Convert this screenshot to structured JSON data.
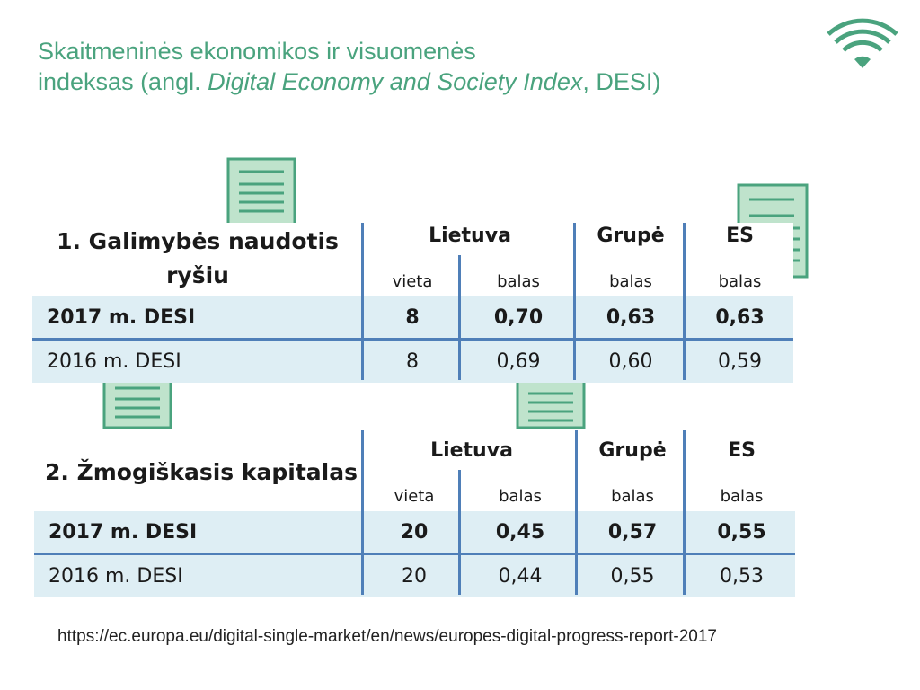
{
  "title": {
    "line1": "Skaitmeninės ekonomikos ir visuomenės",
    "line2_prefix": "indeksas (angl. ",
    "line2_italic": "Digital Economy and Society Index",
    "line2_suffix": ", DESI)"
  },
  "icons": {
    "wifi": "wifi-icon",
    "document": "document-icon",
    "accent_color": "#4aa37e",
    "doc_fill": "#bfe3cc",
    "grid_color": "#4f7fb8",
    "row_bg": "#deeef4"
  },
  "tables": [
    {
      "caption_line1": "1. Galimybės naudotis",
      "caption_line2": "ryšiu",
      "groups": {
        "lietuva": "Lietuva",
        "grupe": "Grupė",
        "es": "ES"
      },
      "subheaders": {
        "vieta": "vieta",
        "balas_lt": "balas",
        "balas_grupe": "balas",
        "balas_es": "balas"
      },
      "rows": [
        {
          "label": "2017 m. DESI",
          "vieta": "8",
          "balas_lt": "0,70",
          "balas_grupe": "0,63",
          "balas_es": "0,63"
        },
        {
          "label": "2016 m. DESI",
          "vieta": "8",
          "balas_lt": "0,69",
          "balas_grupe": "0,60",
          "balas_es": "0,59"
        }
      ]
    },
    {
      "caption_line1": "2. Žmogiškasis kapitalas",
      "caption_line2": "",
      "groups": {
        "lietuva": "Lietuva",
        "grupe": "Grupė",
        "es": "ES"
      },
      "subheaders": {
        "vieta": "vieta",
        "balas_lt": "balas",
        "balas_grupe": "balas",
        "balas_es": "balas"
      },
      "rows": [
        {
          "label": "2017 m. DESI",
          "vieta": "20",
          "balas_lt": "0,45",
          "balas_grupe": "0,57",
          "balas_es": "0,55"
        },
        {
          "label": "2016 m. DESI",
          "vieta": "20",
          "balas_lt": "0,44",
          "balas_grupe": "0,55",
          "balas_es": "0,53"
        }
      ]
    }
  ],
  "source": "https://ec.europa.eu/digital-single-market/en/news/europes-digital-progress-report-2017"
}
